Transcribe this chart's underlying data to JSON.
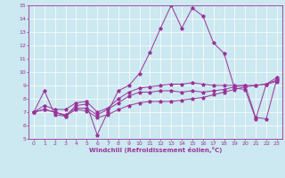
{
  "xlabel": "Windchill (Refroidissement éolien,°C)",
  "ylabel": "",
  "background_color": "#cce8f0",
  "line_color": "#993399",
  "grid_color": "#ffffff",
  "xlim": [
    -0.5,
    23.5
  ],
  "ylim": [
    5,
    15
  ],
  "xticks": [
    0,
    1,
    2,
    3,
    4,
    5,
    6,
    7,
    8,
    9,
    10,
    11,
    12,
    13,
    14,
    15,
    16,
    17,
    18,
    19,
    20,
    21,
    22,
    23
  ],
  "yticks": [
    5,
    6,
    7,
    8,
    9,
    10,
    11,
    12,
    13,
    14,
    15
  ],
  "series": [
    [
      7.0,
      8.6,
      6.8,
      6.7,
      7.5,
      7.6,
      5.3,
      7.0,
      8.6,
      9.0,
      9.9,
      11.5,
      13.3,
      15.0,
      13.3,
      14.8,
      14.2,
      12.2,
      11.4,
      8.8,
      8.7,
      6.5,
      9.1,
      9.6
    ],
    [
      7.0,
      7.2,
      7.0,
      6.7,
      7.2,
      7.1,
      6.6,
      6.8,
      7.2,
      7.5,
      7.7,
      7.8,
      7.8,
      7.8,
      7.9,
      8.0,
      8.1,
      8.3,
      8.5,
      8.7,
      8.9,
      9.0,
      9.1,
      9.3
    ],
    [
      7.0,
      7.2,
      7.0,
      6.8,
      7.3,
      7.3,
      6.8,
      7.2,
      7.7,
      8.2,
      8.5,
      8.5,
      8.6,
      8.6,
      8.5,
      8.6,
      8.5,
      8.6,
      8.7,
      8.9,
      9.0,
      9.0,
      9.1,
      9.4
    ],
    [
      7.0,
      7.5,
      7.2,
      7.2,
      7.7,
      7.8,
      7.0,
      7.3,
      8.0,
      8.5,
      8.8,
      8.9,
      9.0,
      9.1,
      9.1,
      9.2,
      9.1,
      9.0,
      9.0,
      9.0,
      9.0,
      6.6,
      6.5,
      9.5
    ]
  ]
}
